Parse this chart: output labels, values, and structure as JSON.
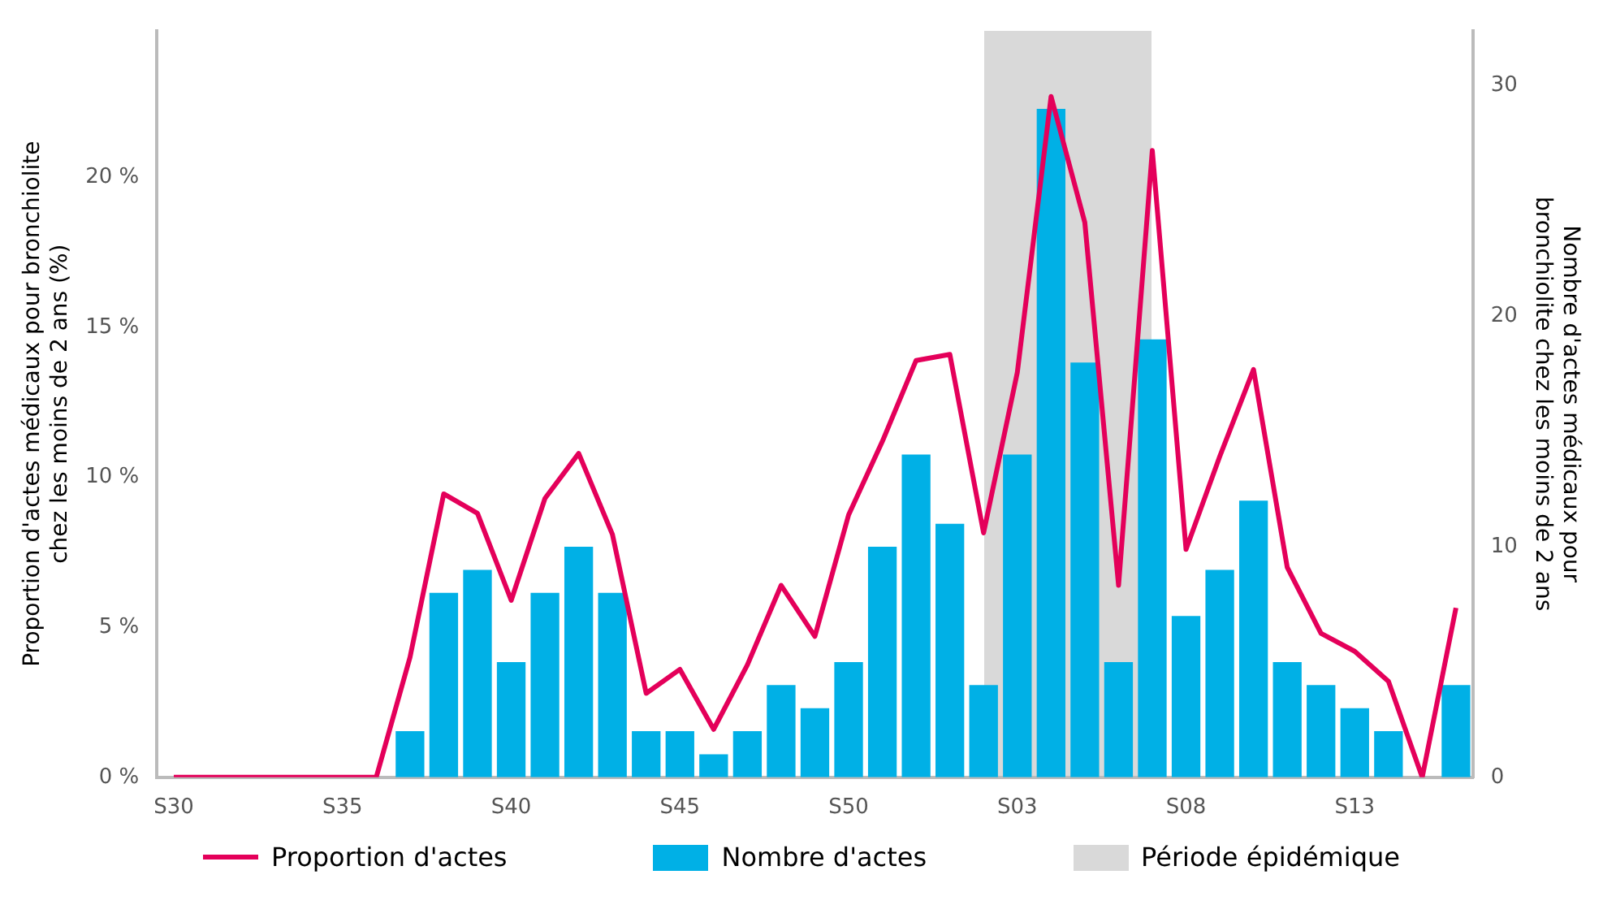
{
  "chart_data": {
    "type": "bar",
    "categories": [
      "S30",
      null,
      null,
      null,
      null,
      "S35",
      null,
      null,
      null,
      null,
      "S40",
      null,
      null,
      null,
      null,
      "S45",
      null,
      null,
      null,
      null,
      "S50",
      null,
      null,
      null,
      null,
      "S03",
      null,
      null,
      null,
      null,
      "S08",
      null,
      null,
      null,
      null,
      "S13",
      null,
      null,
      null
    ],
    "ylabel": "Proportion d'actes médicaux pour bronchiolite\nchez les moins de 2 ans (%)",
    "y2label": "Nombre d'actes médicaux pour\nbronchiolite chez les moins de 2 ans",
    "ylim": [
      0,
      24.9
    ],
    "yticks": [
      {
        "value": 0,
        "label": "0 %"
      },
      {
        "value": 5,
        "label": "5 %"
      },
      {
        "value": 10,
        "label": "10 %"
      },
      {
        "value": 15,
        "label": "15 %"
      },
      {
        "value": 20,
        "label": "20 %"
      }
    ],
    "y2lim": [
      0,
      32.4
    ],
    "y2ticks": [
      0,
      10,
      20,
      30
    ],
    "series": [
      {
        "name": "Proportion d'actes",
        "type": "line",
        "color": "#e4005a",
        "values": [
          0,
          0,
          0,
          0,
          0,
          0,
          0,
          4.0,
          9.45,
          8.8,
          5.9,
          9.3,
          10.8,
          8.1,
          2.8,
          3.6,
          1.6,
          3.75,
          6.4,
          4.7,
          8.75,
          11.2,
          13.9,
          14.1,
          8.15,
          13.5,
          22.7,
          18.5,
          6.4,
          20.9,
          7.6,
          10.7,
          13.6,
          7.0,
          4.8,
          4.2,
          3.2,
          0,
          5.65
        ]
      },
      {
        "name": "Nombre d'actes",
        "axis": "y2",
        "color": "#00b0e6",
        "values": [
          0,
          0,
          0,
          0,
          0,
          0,
          0,
          2,
          8,
          9,
          5,
          8,
          10,
          8,
          2,
          2,
          1,
          2,
          4,
          3,
          5,
          10,
          14,
          11,
          4,
          14,
          29,
          18,
          5,
          19,
          7,
          9,
          12,
          5,
          4,
          3,
          2,
          0,
          4
        ]
      }
    ],
    "annotations": [
      "Période épidémique"
    ],
    "legend": "bottom",
    "grid": false,
    "marker": "none"
  }
}
